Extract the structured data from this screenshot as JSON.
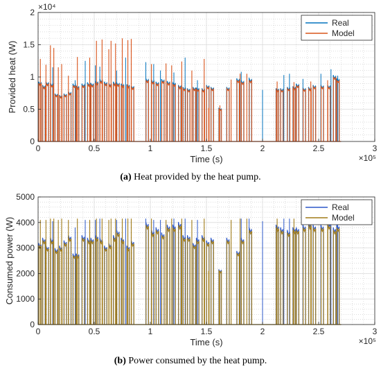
{
  "chart_data": [
    {
      "type": "line",
      "caption_tag": "(a)",
      "caption_text": " Heat provided by the heat pump.",
      "xlabel": "Time (s)",
      "ylabel": "Provided heat (W)",
      "x_exponent_label": "×10⁵",
      "y_exponent_label": "×10⁴",
      "xlim": [
        0,
        300000
      ],
      "ylim": [
        0,
        20000
      ],
      "xticks": [
        0,
        50000,
        100000,
        150000,
        200000,
        250000,
        300000
      ],
      "xtick_labels": [
        "0",
        "0.5",
        "1",
        "1.5",
        "2",
        "2.5",
        "3"
      ],
      "yticks": [
        0,
        5000,
        10000,
        15000,
        20000
      ],
      "ytick_labels": [
        "0",
        "0.5",
        "1",
        "1.5",
        "2"
      ],
      "grid": true,
      "legend_position": "top-right",
      "series": [
        {
          "name": "Real",
          "color": "#0072BD"
        },
        {
          "name": "Model",
          "color": "#D95319"
        }
      ],
      "segments": [
        [
          500,
          9000
        ],
        [
          4000,
          8500
        ],
        [
          7000,
          9000
        ],
        [
          11000,
          8800
        ],
        [
          15000,
          7200
        ],
        [
          19000,
          7000
        ],
        [
          23000,
          7200
        ],
        [
          27000,
          7500
        ],
        [
          31000,
          8700
        ],
        [
          34000,
          8400
        ],
        [
          39000,
          8700
        ],
        [
          44000,
          8900
        ],
        [
          47000,
          8800
        ],
        [
          51000,
          9100
        ],
        [
          55000,
          9400
        ],
        [
          59000,
          9000
        ],
        [
          63000,
          8800
        ],
        [
          67000,
          9000
        ],
        [
          70000,
          8900
        ],
        [
          74000,
          8700
        ],
        [
          79000,
          8600
        ],
        [
          83000,
          8400
        ],
        [
          96000,
          9500
        ],
        [
          101000,
          9300
        ],
        [
          105000,
          9000
        ],
        [
          110000,
          9400
        ],
        [
          115000,
          9100
        ],
        [
          120000,
          8900
        ],
        [
          125000,
          8500
        ],
        [
          129000,
          8200
        ],
        [
          133000,
          8000
        ],
        [
          138000,
          8200
        ],
        [
          141000,
          8100
        ],
        [
          146000,
          8000
        ],
        [
          150000,
          8500
        ],
        [
          154000,
          8200
        ],
        [
          161000,
          5000
        ],
        [
          168000,
          8200
        ],
        [
          177000,
          9500
        ],
        [
          181000,
          9200
        ],
        [
          188000,
          9500
        ],
        [
          212000,
          8000
        ],
        [
          216000,
          8000
        ],
        [
          222000,
          8200
        ],
        [
          227000,
          8300
        ],
        [
          230000,
          8700
        ],
        [
          236000,
          8100
        ],
        [
          241000,
          8200
        ],
        [
          245000,
          8500
        ],
        [
          252000,
          8500
        ],
        [
          258000,
          8500
        ],
        [
          263000,
          10000
        ],
        [
          266000,
          9500
        ]
      ],
      "peaks_real": [
        [
          13000,
          11500
        ],
        [
          33000,
          9500
        ],
        [
          42000,
          12500
        ],
        [
          51000,
          11800
        ],
        [
          55000,
          11600
        ],
        [
          70000,
          11000
        ],
        [
          78000,
          13000
        ],
        [
          96000,
          12300
        ],
        [
          103000,
          12000
        ],
        [
          109000,
          11000
        ],
        [
          121000,
          10700
        ],
        [
          131000,
          13000
        ],
        [
          142000,
          9500
        ],
        [
          181000,
          10800
        ],
        [
          188000,
          9900
        ],
        [
          200000,
          8000
        ],
        [
          219000,
          10300
        ],
        [
          224000,
          10500
        ],
        [
          236000,
          9700
        ],
        [
          252000,
          10500
        ],
        [
          261000,
          11200
        ],
        [
          267000,
          10200
        ]
      ],
      "peaks_model": [
        [
          2000,
          12800
        ],
        [
          7000,
          11900
        ],
        [
          11000,
          14900
        ],
        [
          14000,
          14500
        ],
        [
          18000,
          11500
        ],
        [
          21000,
          12000
        ],
        [
          27000,
          10200
        ],
        [
          35000,
          13100
        ],
        [
          46000,
          13000
        ],
        [
          52000,
          15600
        ],
        [
          57000,
          15800
        ],
        [
          63000,
          14300
        ],
        [
          65000,
          15600
        ],
        [
          69000,
          15200
        ],
        [
          75000,
          16000
        ],
        [
          80000,
          15700
        ],
        [
          83000,
          15900
        ],
        [
          101000,
          12000
        ],
        [
          114000,
          12100
        ],
        [
          119000,
          11800
        ],
        [
          128000,
          12400
        ],
        [
          137000,
          11000
        ],
        [
          148000,
          12800
        ],
        [
          152000,
          5200
        ],
        [
          162000,
          5600
        ],
        [
          172000,
          9600
        ],
        [
          180000,
          10500
        ],
        [
          186000,
          10500
        ],
        [
          213000,
          9300
        ],
        [
          228000,
          9200
        ],
        [
          243000,
          9300
        ],
        [
          258000,
          9500
        ]
      ]
    },
    {
      "type": "line",
      "caption_tag": "(b)",
      "caption_text": " Power consumed by the heat pump.",
      "xlabel": "Time (s)",
      "ylabel": "Consumed power (W)",
      "x_exponent_label": "×10⁵",
      "xlim": [
        0,
        300000
      ],
      "ylim": [
        0,
        5000
      ],
      "xticks": [
        0,
        50000,
        100000,
        150000,
        200000,
        250000,
        300000
      ],
      "xtick_labels": [
        "0",
        "0.5",
        "1",
        "1.5",
        "2",
        "2.5",
        "3"
      ],
      "yticks": [
        0,
        1000,
        2000,
        3000,
        4000,
        5000
      ],
      "ytick_labels": [
        "0",
        "1000",
        "2000",
        "3000",
        "4000",
        "5000"
      ],
      "grid": true,
      "legend_position": "top-right",
      "series": [
        {
          "name": "Real",
          "color": "#2B57C8"
        },
        {
          "name": "Model",
          "color": "#A07A16"
        }
      ],
      "segments": [
        [
          500,
          3100
        ],
        [
          4000,
          3300
        ],
        [
          7000,
          3000
        ],
        [
          11000,
          3300
        ],
        [
          15000,
          2900
        ],
        [
          19000,
          3000
        ],
        [
          23000,
          3200
        ],
        [
          27000,
          3400
        ],
        [
          31000,
          2700
        ],
        [
          34000,
          2700
        ],
        [
          39000,
          3400
        ],
        [
          44000,
          3300
        ],
        [
          47000,
          3300
        ],
        [
          51000,
          3400
        ],
        [
          55000,
          3300
        ],
        [
          59000,
          3000
        ],
        [
          63000,
          3100
        ],
        [
          67000,
          3400
        ],
        [
          70000,
          3600
        ],
        [
          74000,
          3300
        ],
        [
          79000,
          3000
        ],
        [
          83000,
          3200
        ],
        [
          96000,
          3900
        ],
        [
          101000,
          3600
        ],
        [
          105000,
          3700
        ],
        [
          110000,
          3500
        ],
        [
          115000,
          3800
        ],
        [
          120000,
          3800
        ],
        [
          125000,
          3900
        ],
        [
          129000,
          3400
        ],
        [
          133000,
          3400
        ],
        [
          138000,
          3100
        ],
        [
          141000,
          3300
        ],
        [
          146000,
          3400
        ],
        [
          150000,
          3200
        ],
        [
          154000,
          3300
        ],
        [
          161000,
          2100
        ],
        [
          168000,
          3300
        ],
        [
          177000,
          2800
        ],
        [
          181000,
          3300
        ],
        [
          188000,
          3700
        ],
        [
          212000,
          3800
        ],
        [
          216000,
          3700
        ],
        [
          222000,
          3600
        ],
        [
          227000,
          3700
        ],
        [
          230000,
          3700
        ],
        [
          236000,
          3800
        ],
        [
          241000,
          3900
        ],
        [
          245000,
          3800
        ],
        [
          252000,
          3800
        ],
        [
          258000,
          3900
        ],
        [
          263000,
          3700
        ],
        [
          266000,
          3800
        ]
      ],
      "peaks_real": [
        [
          13000,
          4050
        ],
        [
          33000,
          3800
        ],
        [
          42000,
          4100
        ],
        [
          51000,
          4100
        ],
        [
          55000,
          4150
        ],
        [
          70000,
          4100
        ],
        [
          78000,
          4150
        ],
        [
          96000,
          4150
        ],
        [
          103000,
          4100
        ],
        [
          109000,
          4100
        ],
        [
          121000,
          4150
        ],
        [
          131000,
          4150
        ],
        [
          142000,
          4100
        ],
        [
          181000,
          4150
        ],
        [
          188000,
          4150
        ],
        [
          200000,
          4050
        ],
        [
          219000,
          4150
        ],
        [
          224000,
          4150
        ],
        [
          236000,
          4150
        ],
        [
          252000,
          4100
        ],
        [
          261000,
          4150
        ],
        [
          267000,
          4100
        ]
      ],
      "peaks_model": [
        [
          2000,
          4100
        ],
        [
          7000,
          4100
        ],
        [
          11000,
          4150
        ],
        [
          14000,
          4150
        ],
        [
          18000,
          4100
        ],
        [
          21000,
          4150
        ],
        [
          27000,
          4100
        ],
        [
          35000,
          4150
        ],
        [
          46000,
          4100
        ],
        [
          52000,
          4150
        ],
        [
          57000,
          4150
        ],
        [
          63000,
          4100
        ],
        [
          65000,
          4150
        ],
        [
          69000,
          4150
        ],
        [
          75000,
          4150
        ],
        [
          80000,
          4150
        ],
        [
          83000,
          4150
        ],
        [
          101000,
          4150
        ],
        [
          114000,
          4100
        ],
        [
          119000,
          4150
        ],
        [
          128000,
          4150
        ],
        [
          137000,
          4100
        ],
        [
          148000,
          4150
        ],
        [
          152000,
          2100
        ],
        [
          162000,
          2100
        ],
        [
          172000,
          4100
        ],
        [
          180000,
          4150
        ],
        [
          186000,
          4150
        ],
        [
          213000,
          4150
        ],
        [
          228000,
          4150
        ],
        [
          243000,
          4150
        ],
        [
          258000,
          4150
        ]
      ]
    }
  ]
}
